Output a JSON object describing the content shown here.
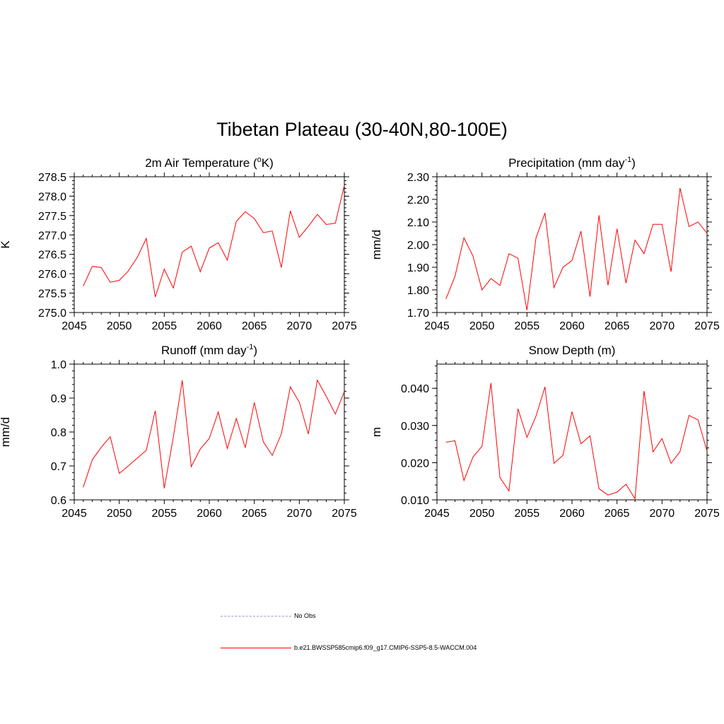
{
  "figure": {
    "title": "Tibetan Plateau (30-40N,80-100E)"
  },
  "legend": {
    "entries": [
      {
        "label": "No Obs",
        "color": "#9999dd",
        "style": "dashed"
      },
      {
        "label": "b.e21.BWSSP585cmip6.f09_g17.CMIP6-SSP5-8.5-WACCM.004",
        "color": "#ff0000",
        "style": "solid"
      }
    ]
  },
  "chart_data": [
    {
      "type": "line",
      "title": "2m Air Temperature (",
      "title_sup": "o",
      "title_end": "K)",
      "ylabel": "K",
      "xlim": [
        2045,
        2075
      ],
      "ylim": [
        275.0,
        278.5
      ],
      "xticks": [
        2045,
        2050,
        2055,
        2060,
        2065,
        2070,
        2075
      ],
      "yticks": [
        "275.0",
        "275.5",
        "276.0",
        "276.5",
        "277.0",
        "277.5",
        "278.0",
        "278.5"
      ],
      "ytick_values": [
        275.0,
        275.5,
        276.0,
        276.5,
        277.0,
        277.5,
        278.0,
        278.5
      ],
      "yminor": 0.1,
      "color": "#ff0000",
      "x": [
        2046,
        2047,
        2048,
        2049,
        2050,
        2051,
        2052,
        2053,
        2054,
        2055,
        2056,
        2057,
        2058,
        2059,
        2060,
        2061,
        2062,
        2063,
        2064,
        2065,
        2066,
        2067,
        2068,
        2069,
        2070,
        2071,
        2072,
        2073,
        2074,
        2075
      ],
      "y": [
        275.68,
        276.19,
        276.16,
        275.78,
        275.83,
        276.07,
        276.42,
        276.91,
        275.4,
        276.12,
        275.63,
        276.56,
        276.71,
        276.05,
        276.66,
        276.8,
        276.35,
        277.35,
        277.6,
        277.42,
        277.06,
        277.1,
        276.16,
        277.62,
        276.94,
        277.22,
        277.53,
        277.27,
        277.3,
        278.28
      ]
    },
    {
      "type": "line",
      "title": "Precipitation (mm day",
      "title_sup": "-1",
      "title_end": ")",
      "ylabel": "mm/d",
      "xlim": [
        2045,
        2075
      ],
      "ylim": [
        1.7,
        2.3
      ],
      "xticks": [
        2045,
        2050,
        2055,
        2060,
        2065,
        2070,
        2075
      ],
      "yticks": [
        "1.70",
        "1.80",
        "1.90",
        "2.00",
        "2.10",
        "2.20",
        "2.30"
      ],
      "ytick_values": [
        1.7,
        1.8,
        1.9,
        2.0,
        2.1,
        2.2,
        2.3
      ],
      "yminor": 0.02,
      "color": "#ff0000",
      "x": [
        2046,
        2047,
        2048,
        2049,
        2050,
        2051,
        2052,
        2053,
        2054,
        2055,
        2056,
        2057,
        2058,
        2059,
        2060,
        2061,
        2062,
        2063,
        2064,
        2065,
        2066,
        2067,
        2068,
        2069,
        2070,
        2071,
        2072,
        2073,
        2074,
        2075
      ],
      "y": [
        1.76,
        1.86,
        2.03,
        1.95,
        1.8,
        1.85,
        1.82,
        1.96,
        1.94,
        1.71,
        2.03,
        2.14,
        1.81,
        1.9,
        1.93,
        2.06,
        1.77,
        2.13,
        1.82,
        2.07,
        1.83,
        2.02,
        1.96,
        2.09,
        2.09,
        1.88,
        2.25,
        2.08,
        2.1,
        2.05
      ]
    },
    {
      "type": "line",
      "title": "Runoff (mm day",
      "title_sup": "-1",
      "title_end": ")",
      "ylabel": "mm/d",
      "xlim": [
        2045,
        2075
      ],
      "ylim": [
        0.6,
        1.0
      ],
      "xticks": [
        2045,
        2050,
        2055,
        2060,
        2065,
        2070,
        2075
      ],
      "yticks": [
        "0.6",
        "0.7",
        "0.8",
        "0.9",
        "1.0"
      ],
      "ytick_values": [
        0.6,
        0.7,
        0.8,
        0.9,
        1.0
      ],
      "yminor": 0.02,
      "color": "#ff0000",
      "x": [
        2046,
        2047,
        2048,
        2049,
        2050,
        2051,
        2052,
        2053,
        2054,
        2055,
        2056,
        2057,
        2058,
        2059,
        2060,
        2061,
        2062,
        2063,
        2064,
        2065,
        2066,
        2067,
        2068,
        2069,
        2070,
        2071,
        2072,
        2073,
        2074,
        2075
      ],
      "y": [
        0.637,
        0.718,
        0.755,
        0.786,
        0.678,
        0.7,
        0.723,
        0.746,
        0.863,
        0.634,
        0.784,
        0.952,
        0.698,
        0.75,
        0.781,
        0.859,
        0.751,
        0.84,
        0.754,
        0.887,
        0.771,
        0.731,
        0.794,
        0.933,
        0.888,
        0.794,
        0.953,
        0.905,
        0.853,
        0.919
      ]
    },
    {
      "type": "line",
      "title": "Snow Depth (m)",
      "title_sup": "",
      "title_end": "",
      "ylabel": "m",
      "xlim": [
        2045,
        2075
      ],
      "ylim": [
        0.01,
        0.0465
      ],
      "xticks": [
        2045,
        2050,
        2055,
        2060,
        2065,
        2070,
        2075
      ],
      "yticks": [
        "0.010",
        "0.020",
        "0.030",
        "0.040"
      ],
      "ytick_values": [
        0.01,
        0.02,
        0.03,
        0.04
      ],
      "yminor": 0.002,
      "color": "#ff0000",
      "x": [
        2046,
        2047,
        2048,
        2049,
        2050,
        2051,
        2052,
        2053,
        2054,
        2055,
        2056,
        2057,
        2058,
        2059,
        2060,
        2061,
        2062,
        2063,
        2064,
        2065,
        2066,
        2067,
        2068,
        2069,
        2070,
        2071,
        2072,
        2073,
        2074,
        2075
      ],
      "y": [
        0.0255,
        0.0259,
        0.0152,
        0.0215,
        0.0244,
        0.0414,
        0.016,
        0.0124,
        0.0345,
        0.0268,
        0.0325,
        0.0404,
        0.0198,
        0.022,
        0.0337,
        0.0251,
        0.0272,
        0.013,
        0.0113,
        0.0121,
        0.0142,
        0.0103,
        0.0393,
        0.0229,
        0.0265,
        0.0198,
        0.023,
        0.0327,
        0.0315,
        0.0231
      ]
    }
  ]
}
